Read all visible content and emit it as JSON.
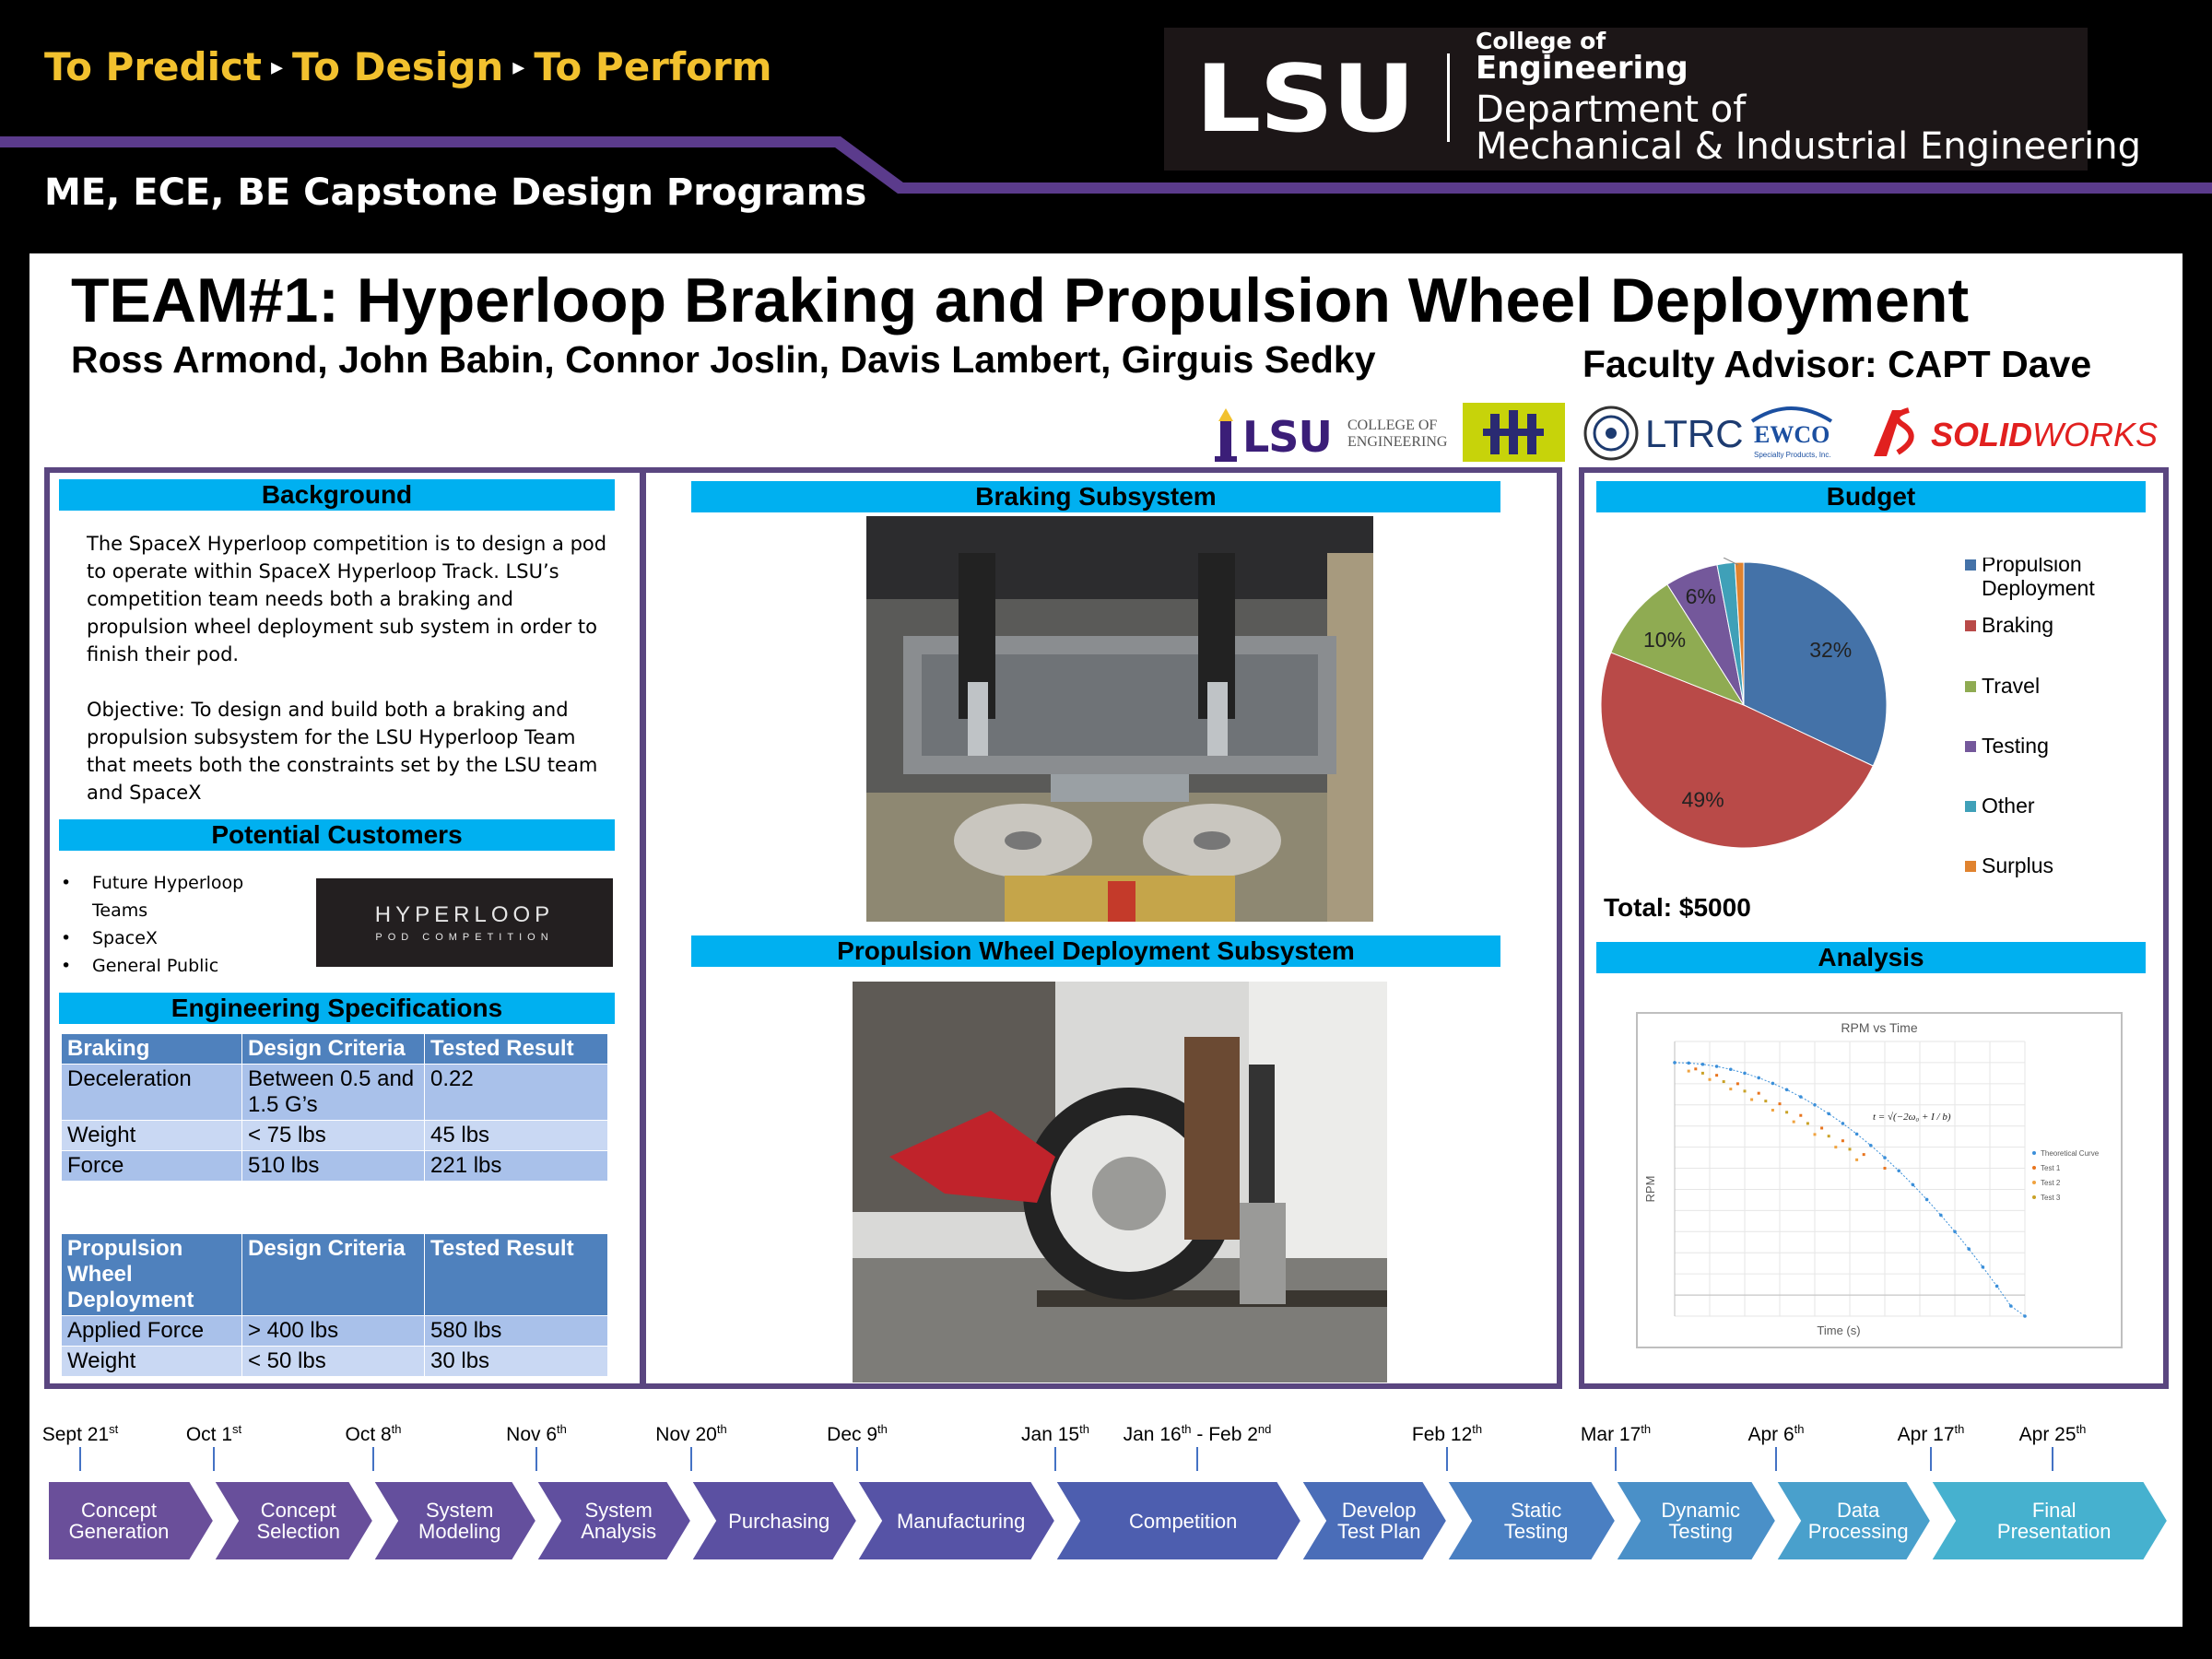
{
  "header": {
    "tagline": [
      "To Predict",
      "To Design",
      "To Perform"
    ],
    "tagline_sep": "▸",
    "programs": "ME, ECE, BE Capstone Design Programs",
    "logo": {
      "letters": "LSU",
      "college_line1": "College of",
      "college_line2": "Engineering",
      "dept_line1": "Department of",
      "dept_line2": "Mechanical & Industrial Engineering"
    },
    "colors": {
      "tagline": "#f2c12e",
      "stripe": "#5b3b8c"
    }
  },
  "poster": {
    "title": "TEAM#1: Hyperloop Braking and Propulsion Wheel Deployment",
    "authors": "Ross Armond, John Babin, Connor Joslin, Davis Lambert, Girguis Sedky",
    "advisor": "Faculty Advisor: CAPT Dave"
  },
  "sponsors": {
    "lsu": {
      "main": "LSU",
      "sub1": "COLLEGE OF",
      "sub2": "ENGINEERING"
    },
    "ltrc": "LTRC",
    "ewco": {
      "main": "EWCO",
      "sub": "Specialty Products, Inc."
    },
    "solidworks": {
      "prefix": "SOLID",
      "suffix": "WORKS"
    }
  },
  "background": {
    "heading": "Background",
    "text": "The SpaceX Hyperloop competition is to design a pod to operate within SpaceX Hyperloop Track. LSU’s competition team needs both a braking and propulsion wheel deployment sub system in order to finish their pod.",
    "objective": "Objective: To design and build both a braking and propulsion subsystem for the LSU Hyperloop Team that meets both the constraints set by the LSU team and SpaceX"
  },
  "customers": {
    "heading": "Potential Customers",
    "items": [
      "Future Hyperloop Teams",
      "SpaceX",
      "General Public"
    ],
    "logo_line1": "HYPERLOOP",
    "logo_line2": "POD COMPETITION"
  },
  "specs": {
    "heading": "Engineering Specifications",
    "braking": {
      "headers": [
        "Braking",
        "Design Criteria",
        "Tested Result"
      ],
      "rows": [
        [
          "Deceleration",
          "Between 0.5 and 1.5 G’s",
          "0.22"
        ],
        [
          "Weight",
          "< 75 lbs",
          "45 lbs"
        ],
        [
          "Force",
          "510 lbs",
          "221 lbs"
        ]
      ]
    },
    "propulsion": {
      "headers": [
        "Propulsion Wheel Deployment",
        "Design Criteria",
        "Tested Result"
      ],
      "rows": [
        [
          "Applied Force",
          "> 400 lbs",
          "580 lbs"
        ],
        [
          "Weight",
          "< 50 lbs",
          "30 lbs"
        ]
      ]
    }
  },
  "middle": {
    "braking_heading": "Braking Subsystem",
    "propulsion_heading": "Propulsion Wheel Deployment Subsystem"
  },
  "budget": {
    "heading": "Budget",
    "total": "Total: $5000"
  },
  "analysis": {
    "heading": "Analysis"
  },
  "chart_data": [
    {
      "type": "pie",
      "title": "Budget",
      "categories": [
        "Propulsion Deployment",
        "Braking",
        "Travel",
        "Testing",
        "Other",
        "Surplus"
      ],
      "values": [
        32,
        49,
        10,
        6,
        2,
        1
      ],
      "labels": [
        "32%",
        "49%",
        "10%",
        "6%",
        "2%",
        "1%"
      ],
      "colors": [
        "#4472a8",
        "#b94a48",
        "#8fab52",
        "#74589b",
        "#3fa0b8",
        "#e0832f"
      ],
      "legend": "right"
    },
    {
      "type": "scatter",
      "title": "RPM vs Time",
      "xlabel": "Time (s)",
      "ylabel": "RPM",
      "equation": "t = √(−2ω₀ + I / b)",
      "series": [
        {
          "name": "Theoretical Curve",
          "color": "#3b8fd9",
          "x": [
            0.0,
            0.2,
            0.4,
            0.6,
            0.8,
            1.0,
            1.2,
            1.4,
            1.6,
            1.8,
            2.0,
            2.2,
            2.4,
            2.6,
            2.8,
            3.0,
            3.2,
            3.4,
            3.6,
            3.8,
            4.0,
            4.2,
            4.4,
            4.6,
            4.8,
            5.0
          ],
          "y": [
            1100,
            1098,
            1092,
            1082,
            1068,
            1050,
            1028,
            1002,
            972,
            938,
            900,
            858,
            812,
            762,
            708,
            650,
            588,
            522,
            452,
            378,
            300,
            218,
            132,
            42,
            -52,
            -100
          ]
        },
        {
          "name": "Test 1",
          "color": "#e8741e",
          "x": [
            0.3,
            0.6,
            0.9,
            1.2,
            1.5,
            1.8,
            2.1,
            2.4,
            2.7,
            3.0
          ],
          "y": [
            1070,
            1040,
            1000,
            955,
            905,
            850,
            790,
            730,
            665,
            600
          ]
        },
        {
          "name": "Test 2",
          "color": "#f0a340",
          "x": [
            0.2,
            0.5,
            0.8,
            1.1,
            1.4,
            1.7,
            2.0,
            2.3,
            2.6
          ],
          "y": [
            1060,
            1020,
            975,
            925,
            875,
            820,
            760,
            700,
            640
          ]
        },
        {
          "name": "Test 3",
          "color": "#c9a227",
          "x": [
            0.4,
            0.7,
            1.0,
            1.3,
            1.6,
            1.9,
            2.2,
            2.5
          ],
          "y": [
            1050,
            1010,
            965,
            918,
            865,
            812,
            752,
            690
          ]
        }
      ]
    }
  ],
  "timeline": {
    "dates": [
      {
        "main": "Sept 21",
        "sup": "st"
      },
      {
        "main": "Oct 1",
        "sup": "st"
      },
      {
        "main": "Oct 8",
        "sup": "th"
      },
      {
        "main": "Nov 6",
        "sup": "th"
      },
      {
        "main": "Nov 20",
        "sup": "th"
      },
      {
        "main": "Dec 9",
        "sup": "th"
      },
      {
        "main": "Jan 15",
        "sup": "th"
      },
      {
        "main": "Jan 16",
        "sup": "th",
        "tail": " -  Feb 2",
        "tail_sup": "nd"
      },
      {
        "main": "Feb 12",
        "sup": "th"
      },
      {
        "main": "Mar 17",
        "sup": "th"
      },
      {
        "main": "Apr 6",
        "sup": "th"
      },
      {
        "main": "Apr 17",
        "sup": "th"
      },
      {
        "main": "Apr 25",
        "sup": "th"
      }
    ],
    "stages": [
      "Concept\nGeneration",
      "Concept\nSelection",
      "System\nModeling",
      "System\nAnalysis",
      "Purchasing",
      "Manufacturing",
      "Competition",
      "Develop\nTest Plan",
      "Static\nTesting",
      "Dynamic\nTesting",
      "Data\nProcessing",
      "Final\nPresentation"
    ],
    "colors": [
      "#6a4f9a",
      "#684f9b",
      "#644f9d",
      "#604f9f",
      "#5b50a2",
      "#5653a6",
      "#4d5eaf",
      "#4a6db8",
      "#4a7fc2",
      "#4a90c8",
      "#49a0cc",
      "#46b1cf"
    ]
  }
}
